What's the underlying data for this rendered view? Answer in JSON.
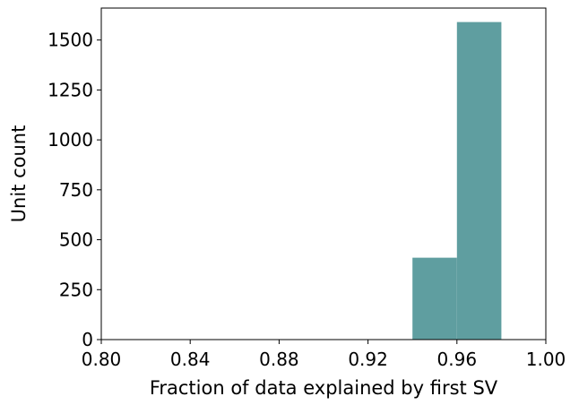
{
  "chart_data": {
    "type": "bar",
    "title": "",
    "xlabel": "Fraction of data explained by first SV",
    "ylabel": "Unit count",
    "xlim": [
      0.8,
      1.0
    ],
    "ylim": [
      0,
      1660
    ],
    "xticks": [
      "0.80",
      "0.84",
      "0.88",
      "0.92",
      "0.96",
      "1.00"
    ],
    "xtick_values": [
      0.8,
      0.84,
      0.88,
      0.92,
      0.96,
      1.0
    ],
    "yticks": [
      "0",
      "250",
      "500",
      "750",
      "1000",
      "1250",
      "1500"
    ],
    "ytick_values": [
      0,
      250,
      500,
      750,
      1000,
      1250,
      1500
    ],
    "bins": [
      {
        "x0": 0.94,
        "x1": 0.96,
        "count": 410
      },
      {
        "x0": 0.96,
        "x1": 0.98,
        "count": 1590
      }
    ],
    "bar_color": "#5f9ea0",
    "grid": false,
    "legend": "none"
  }
}
